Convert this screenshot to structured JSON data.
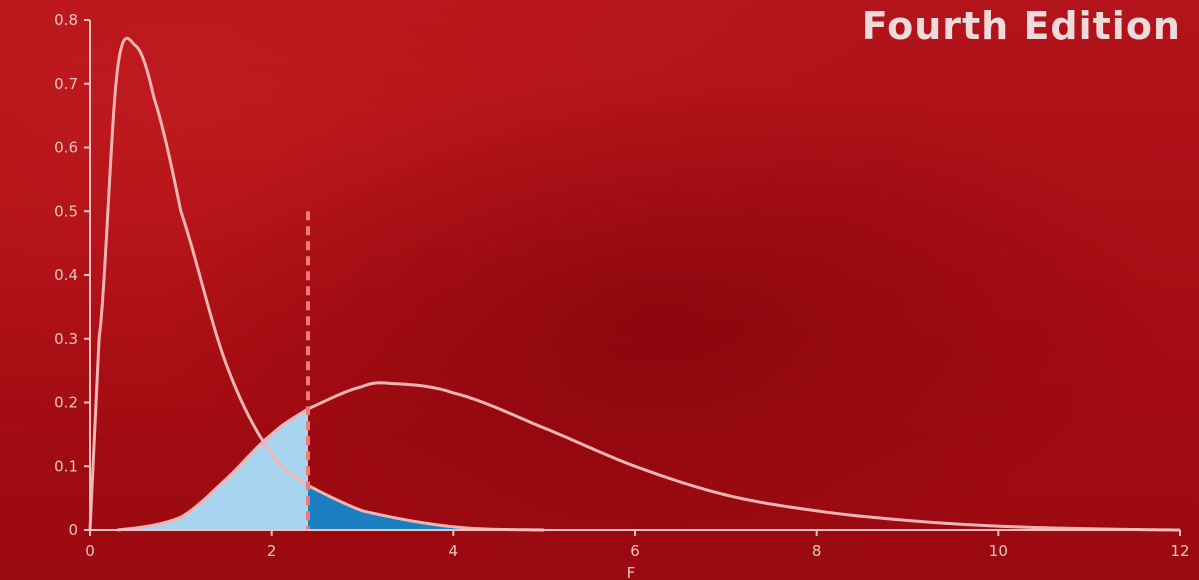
{
  "header": {
    "edition": "Fourth Edition"
  },
  "chart_data": {
    "type": "line",
    "xlabel": "F",
    "ylabel": "",
    "xlim": [
      0,
      12
    ],
    "ylim": [
      0,
      0.8
    ],
    "x_ticks": [
      0,
      2,
      4,
      6,
      8,
      10,
      12
    ],
    "y_ticks": [
      0,
      0.1,
      0.2,
      0.3,
      0.4,
      0.5,
      0.6,
      0.7,
      0.8
    ],
    "grid": false,
    "critical_value": 2.4,
    "series": [
      {
        "x": [
          0.1,
          0.3,
          0.5,
          0.7,
          1.0,
          1.5,
          2.0,
          2.4,
          3.0,
          4.0,
          5.0
        ],
        "y": [
          0.3,
          0.72,
          0.76,
          0.68,
          0.5,
          0.26,
          0.12,
          0.07,
          0.03,
          0.005,
          0.0
        ],
        "color": "#f3b4b4"
      },
      {
        "x": [
          0.3,
          1.0,
          1.5,
          2.0,
          2.4,
          3.0,
          3.3,
          4.0,
          5.0,
          6.0,
          7.0,
          8.0,
          9.0,
          10.0,
          11.0,
          12.0
        ],
        "y": [
          0.0,
          0.02,
          0.08,
          0.15,
          0.19,
          0.225,
          0.23,
          0.215,
          0.16,
          0.1,
          0.055,
          0.03,
          0.015,
          0.006,
          0.002,
          0.0
        ],
        "color": "#f3b4b4"
      }
    ],
    "shaded_regions": [
      {
        "under": 1,
        "from": 0.3,
        "to": 2.4,
        "color": "#a8d4ef"
      },
      {
        "under": 0,
        "from": 2.4,
        "to": 4.5,
        "color": "#1a7fc1"
      }
    ],
    "colors": {
      "axis": "#e8c4c4",
      "curve": "#f3b4b4",
      "critical_line": "#f07a7a"
    }
  }
}
